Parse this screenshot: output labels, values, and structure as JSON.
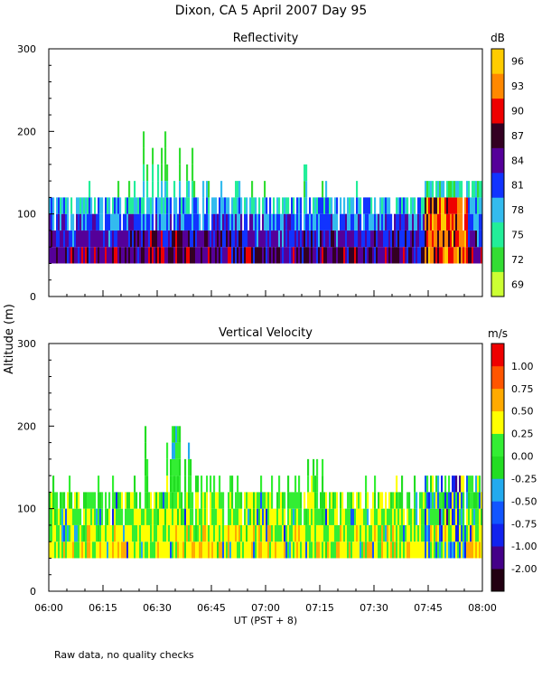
{
  "page_title": "Dixon, CA  5 April 2007  Day  95",
  "footer_note": "Raw data, no quality checks",
  "shared_ylabel": "Altitude (m)",
  "colors": {
    "refl_scale": [
      "#ccff33",
      "#33dd33",
      "#22ee99",
      "#33bbee",
      "#1133ff",
      "#550099",
      "#330022",
      "#ee0000",
      "#ff8800",
      "#ffcc00"
    ],
    "vel_scale": [
      "#220011",
      "#440088",
      "#1122ee",
      "#1155ff",
      "#22aaee",
      "#22dd22",
      "#33ee33",
      "#ffff00",
      "#ffaa00",
      "#ff5500",
      "#ee0000"
    ]
  },
  "chart_data": [
    {
      "type": "heatmap",
      "title": "Reflectivity",
      "xlabel": "UT  (PST + 8)",
      "ylabel": "Altitude (m)",
      "xlim": [
        0,
        120
      ],
      "ylim": [
        0,
        300
      ],
      "x_ticks": [
        "06:00",
        "06:15",
        "06:30",
        "06:45",
        "07:00",
        "07:15",
        "07:30",
        "07:45",
        "08:00"
      ],
      "y_ticks": [
        0,
        100,
        200,
        300
      ],
      "colorbar_unit": "dB",
      "colorbar_labels": [
        "69",
        "72",
        "75",
        "78",
        "81",
        "84",
        "87",
        "90",
        "93",
        "96"
      ],
      "altitude_bins_m": [
        40,
        60,
        80,
        100,
        120,
        140,
        160,
        180,
        200
      ],
      "typical_echo_top_m": 120,
      "max_echo_top_m": 200,
      "strong_echo_interval_ut": [
        "07:44",
        "07:56"
      ]
    },
    {
      "type": "heatmap",
      "title": "Vertical Velocity",
      "xlabel": "UT  (PST + 8)",
      "ylabel": "Altitude (m)",
      "xlim": [
        0,
        120
      ],
      "ylim": [
        0,
        300
      ],
      "x_ticks": [
        "06:00",
        "06:15",
        "06:30",
        "06:45",
        "07:00",
        "07:15",
        "07:30",
        "07:45",
        "08:00"
      ],
      "y_ticks": [
        0,
        100,
        200,
        300
      ],
      "colorbar_unit": "m/s",
      "colorbar_labels": [
        "-2.00",
        "-1.00",
        "-0.75",
        "-0.50",
        "-0.25",
        "0.00",
        "0.25",
        "0.50",
        "0.75",
        "1.00"
      ],
      "altitude_bins_m": [
        40,
        60,
        80,
        100,
        120,
        140,
        160,
        180,
        200
      ],
      "typical_echo_top_m": 120,
      "max_echo_top_m": 200
    }
  ]
}
